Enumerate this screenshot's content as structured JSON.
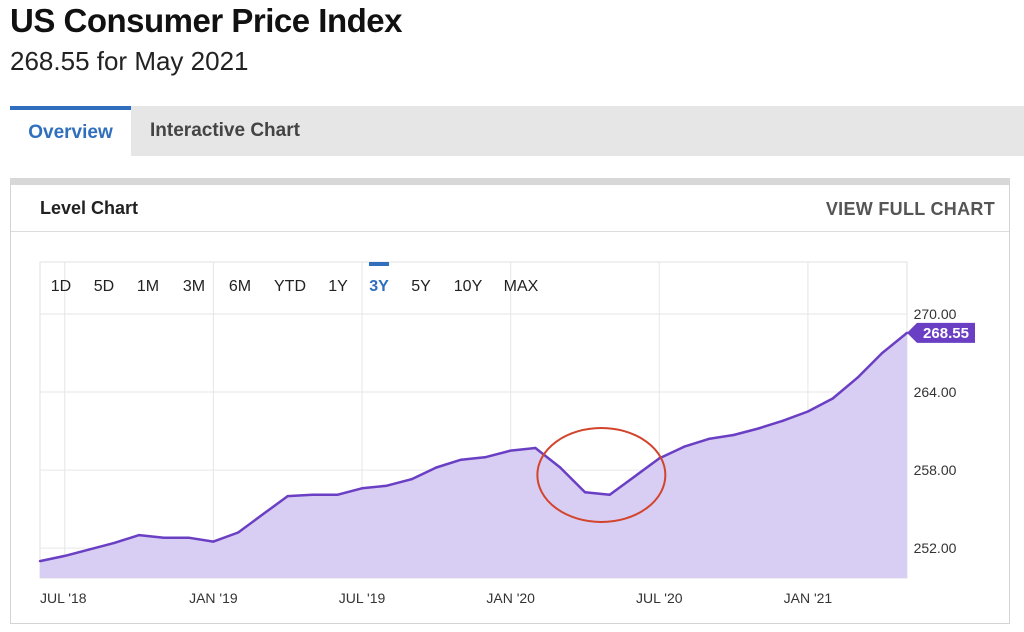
{
  "header": {
    "title": "US Consumer Price Index",
    "subtitle": "268.55 for May 2021"
  },
  "tabs": [
    {
      "label": "Overview",
      "active": true
    },
    {
      "label": "Interactive Chart",
      "active": false
    }
  ],
  "card": {
    "title": "Level Chart",
    "link_label": "VIEW FULL CHART"
  },
  "range_buttons": [
    {
      "label": "1D",
      "active": false
    },
    {
      "label": "5D",
      "active": false
    },
    {
      "label": "1M",
      "active": false
    },
    {
      "label": "3M",
      "active": false
    },
    {
      "label": "6M",
      "active": false
    },
    {
      "label": "YTD",
      "active": false
    },
    {
      "label": "1Y",
      "active": false
    },
    {
      "label": "3Y",
      "active": true
    },
    {
      "label": "5Y",
      "active": false
    },
    {
      "label": "10Y",
      "active": false
    },
    {
      "label": "MAX",
      "active": false
    }
  ],
  "colors": {
    "line": "#6a3fc4",
    "fill": "#d8cdf2",
    "accent": "#2f6fbd",
    "callout": "#6a3fc4",
    "annotation_circle": "#d2442c"
  },
  "chart_data": {
    "type": "area",
    "x_tick_labels": [
      "JUL '18",
      "JAN '19",
      "JUL '19",
      "JAN '20",
      "JUL '20",
      "JAN '21"
    ],
    "y_tick_labels": [
      "252.00",
      "258.00",
      "264.00",
      "270.00"
    ],
    "ylim": [
      249.7,
      274.0
    ],
    "grid": true,
    "x": [
      "2018-06",
      "2018-07",
      "2018-08",
      "2018-09",
      "2018-10",
      "2018-11",
      "2018-12",
      "2019-01",
      "2019-02",
      "2019-03",
      "2019-04",
      "2019-05",
      "2019-06",
      "2019-07",
      "2019-08",
      "2019-09",
      "2019-10",
      "2019-11",
      "2019-12",
      "2020-01",
      "2020-02",
      "2020-03",
      "2020-04",
      "2020-05",
      "2020-06",
      "2020-07",
      "2020-08",
      "2020-09",
      "2020-10",
      "2020-11",
      "2020-12",
      "2021-01",
      "2021-02",
      "2021-03",
      "2021-04",
      "2021-05"
    ],
    "values": [
      251.0,
      251.4,
      251.9,
      252.4,
      253.0,
      252.8,
      252.8,
      252.5,
      253.2,
      254.6,
      256.0,
      256.1,
      256.1,
      256.6,
      256.8,
      257.3,
      258.2,
      258.8,
      259.0,
      259.5,
      259.7,
      258.2,
      256.3,
      256.1,
      257.5,
      258.9,
      259.8,
      260.4,
      260.7,
      261.2,
      261.8,
      262.5,
      263.5,
      265.1,
      267.0,
      268.55
    ],
    "last_value_label": "268.55",
    "annotation": "circle around Apr–Jun 2020 dip"
  }
}
